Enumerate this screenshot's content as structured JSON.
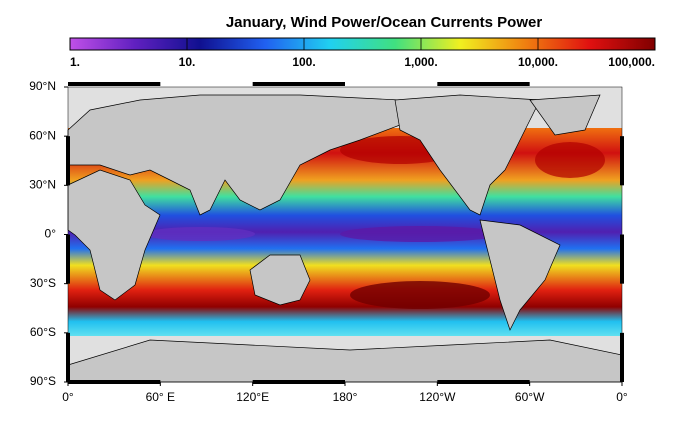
{
  "title": "January, Wind Power/Ocean Currents Power",
  "colorbar": {
    "scale": "log",
    "range": [
      1,
      100000
    ],
    "colors": [
      "#c050e8",
      "#6020c0",
      "#101090",
      "#2060f0",
      "#20d0f0",
      "#40e080",
      "#f0f020",
      "#f08010",
      "#e01010",
      "#800000"
    ],
    "ticks": [
      {
        "value": 1,
        "label": "1."
      },
      {
        "value": 10,
        "label": "10."
      },
      {
        "value": 100,
        "label": "100."
      },
      {
        "value": 1000,
        "label": "1,000."
      },
      {
        "value": 10000,
        "label": "10,000."
      },
      {
        "value": 100000,
        "label": "100,000."
      }
    ]
  },
  "map": {
    "lat_range": [
      -90,
      90
    ],
    "lon_range": [
      0,
      360
    ],
    "lat_ticks": [
      {
        "value": 90,
        "label": "90°N"
      },
      {
        "value": 60,
        "label": "60°N"
      },
      {
        "value": 30,
        "label": "30°N"
      },
      {
        "value": 0,
        "label": "0°"
      },
      {
        "value": -30,
        "label": "30°S"
      },
      {
        "value": -60,
        "label": "60°S"
      },
      {
        "value": -90,
        "label": "90°S"
      }
    ],
    "lon_ticks": [
      {
        "value": 0,
        "label": "0°"
      },
      {
        "value": 60,
        "label": "60° E"
      },
      {
        "value": 120,
        "label": "120°E"
      },
      {
        "value": 180,
        "label": "180°"
      },
      {
        "value": 240,
        "label": "120°W"
      },
      {
        "value": 300,
        "label": "60°W"
      },
      {
        "value": 360,
        "label": "0°"
      }
    ]
  }
}
